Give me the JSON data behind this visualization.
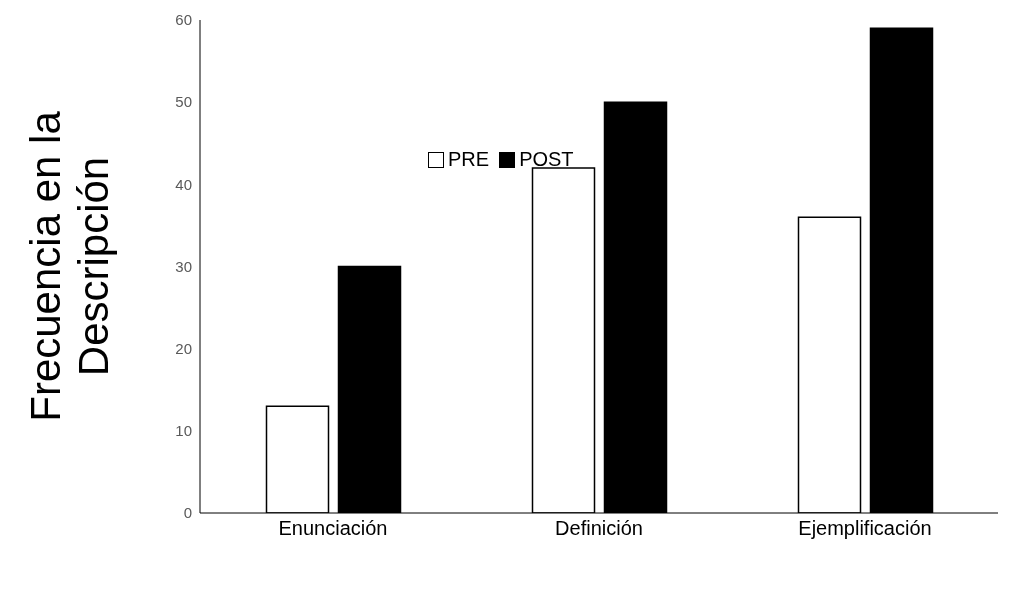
{
  "chart_data": {
    "type": "bar",
    "ylabel": "Frecuencia en la Descripción",
    "categories": [
      "Enunciación",
      "Definición",
      "Ejemplificación"
    ],
    "series": [
      {
        "name": "PRE",
        "color": "#ffffff",
        "values": [
          13,
          42,
          36
        ]
      },
      {
        "name": "POST",
        "color": "#000000",
        "values": [
          30,
          50,
          59
        ]
      }
    ],
    "ylim": [
      0,
      60
    ],
    "yticks": [
      0,
      10,
      20,
      30,
      40,
      50,
      60
    ],
    "grid": false,
    "legend": "top"
  }
}
